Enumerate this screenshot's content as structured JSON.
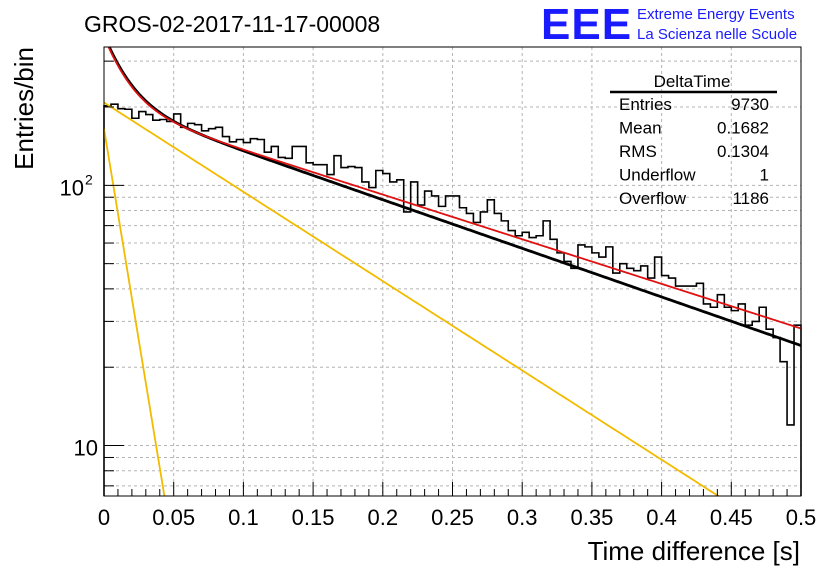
{
  "title": "GROS-02-2017-11-17-00008",
  "logo": {
    "mark": "EEE",
    "line1": "Extreme Energy Events",
    "line2": "La Scienza nelle Scuole",
    "color": "#1a1aff"
  },
  "stats_box": {
    "title": "DeltaTime",
    "rows": [
      {
        "label": "Entries",
        "value": "9730"
      },
      {
        "label": "Mean",
        "value": "0.1682"
      },
      {
        "label": "RMS",
        "value": "0.1304"
      },
      {
        "label": "Underflow",
        "value": "1"
      },
      {
        "label": "Overflow",
        "value": "1186"
      }
    ]
  },
  "chart_data": {
    "type": "histogram",
    "title": "GROS-02-2017-11-17-00008",
    "xlabel": "Time difference [s]",
    "ylabel": "Entries/bin",
    "xlim": [
      0,
      0.5
    ],
    "ylim": [
      6.4,
      340
    ],
    "yscale": "log",
    "grid": true,
    "x_ticks": [
      {
        "value": 0,
        "label": "0"
      },
      {
        "value": 0.05,
        "label": "0.05"
      },
      {
        "value": 0.1,
        "label": "0.1"
      },
      {
        "value": 0.15,
        "label": "0.15"
      },
      {
        "value": 0.2,
        "label": "0.2"
      },
      {
        "value": 0.25,
        "label": "0.25"
      },
      {
        "value": 0.3,
        "label": "0.3"
      },
      {
        "value": 0.35,
        "label": "0.35"
      },
      {
        "value": 0.4,
        "label": "0.4"
      },
      {
        "value": 0.45,
        "label": "0.45"
      },
      {
        "value": 0.5,
        "label": "0.5"
      }
    ],
    "y_ticks": [
      {
        "value": 10,
        "label": "10"
      },
      {
        "value": 100,
        "label": "10",
        "exponent": "2"
      }
    ],
    "bin_width": 0.005,
    "histogram": {
      "name": "DeltaTime",
      "color": "#000000",
      "values": [
        202,
        205,
        197,
        196,
        181,
        192,
        187,
        178,
        179,
        176,
        188,
        167,
        173,
        171,
        162,
        165,
        167,
        154,
        147,
        150,
        146,
        151,
        150,
        134,
        141,
        128,
        127,
        141,
        141,
        122,
        120,
        120,
        110,
        130,
        117,
        118,
        117,
        103,
        98,
        114,
        111,
        103,
        105,
        79,
        103,
        84,
        95,
        91,
        83,
        91,
        91,
        82,
        78,
        72,
        79,
        88,
        78,
        73,
        67,
        64,
        66,
        63,
        64,
        73,
        62,
        55,
        51,
        48,
        59,
        58,
        55,
        53,
        58,
        46,
        50,
        48,
        47,
        49,
        44,
        53,
        45,
        44,
        41,
        41,
        41,
        42,
        35,
        34,
        38,
        34,
        33,
        35,
        29,
        30,
        34,
        28,
        26,
        21,
        12,
        29
      ]
    },
    "functions": [
      {
        "name": "fit_total",
        "color": "#000000",
        "width": 2.8,
        "components": [
          [
            208,
            4.3
          ],
          [
            170,
            60
          ]
        ],
        "x_range": [
          0,
          0.5
        ]
      },
      {
        "name": "fit_red",
        "color": "#e01010",
        "width": 1.8,
        "components": [
          [
            203,
            3.95
          ],
          [
            170,
            60
          ]
        ],
        "x_range": [
          0,
          0.5
        ]
      },
      {
        "name": "slow_component",
        "color": "#f2bb00",
        "width": 1.8,
        "components": [
          [
            208,
            7.9
          ]
        ],
        "x_range": [
          0,
          0.5
        ]
      },
      {
        "name": "fast_component",
        "color": "#f2bb00",
        "width": 1.8,
        "components": [
          [
            165,
            75
          ]
        ],
        "x_range": [
          0,
          0.5
        ]
      }
    ]
  }
}
